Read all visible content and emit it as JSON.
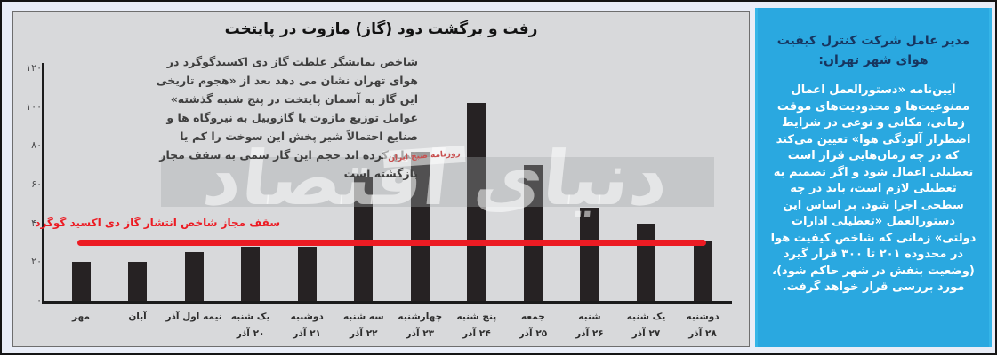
{
  "page": {
    "background": "#e9edf7",
    "panel_background": "#d8d9db"
  },
  "watermark": {
    "main": "دنیای اقتصاد",
    "tag": "روزنامه صبح ایران"
  },
  "chart_data": {
    "type": "bar",
    "title": "رفت و برگشت دود (گاز) مازوت در پایتخت",
    "annotation": "شاخص نمایشگر غلظت گاز دی اکسیدگوگرد در هوای تهران نشان می دهد بعد از «هجوم تاریخی این گاز به آسمان پایتخت در پنج شنبه گذشته» عوامل توزیع مازوت یا گازوییل به نیروگاه ها و صنایع احتمالاً شیر پخش این سوخت را کم یا قطع کرده اند حجم این گاز سمی به سقف مجاز بازگشته است",
    "categories": [
      {
        "line1": "مهر",
        "line2": ""
      },
      {
        "line1": "آبان",
        "line2": ""
      },
      {
        "line1": "نیمه اول آذر",
        "line2": ""
      },
      {
        "line1": "یک شنبه",
        "line2": "۲۰ آذر"
      },
      {
        "line1": "دوشنبه",
        "line2": "۲۱ آذر"
      },
      {
        "line1": "سه شنبه",
        "line2": "۲۲ آذر"
      },
      {
        "line1": "چهارشنبه",
        "line2": "۲۳ آذر"
      },
      {
        "line1": "پنج شنبه",
        "line2": "۲۴ آذر"
      },
      {
        "line1": "جمعه",
        "line2": "۲۵ آذر"
      },
      {
        "line1": "شنبه",
        "line2": "۲۶ آذر"
      },
      {
        "line1": "یک شنبه",
        "line2": "۲۷ آذر"
      },
      {
        "line1": "دوشنبه",
        "line2": "۲۸ آذر"
      }
    ],
    "values": [
      20,
      20,
      25,
      28,
      28,
      64,
      77,
      102,
      70,
      48,
      40,
      31
    ],
    "ylim": [
      0,
      120
    ],
    "ytick_values": [
      0,
      20,
      40,
      60,
      80,
      100,
      120
    ],
    "ytick_labels": [
      "۰",
      "۲۰",
      "۴۰",
      "۶۰",
      "۸۰",
      "۱۰۰",
      "۱۲۰"
    ],
    "grid": false,
    "legend": null,
    "bar_color": "#262223",
    "reference_line": {
      "value": 30,
      "label": "سقف مجاز شاخص انتشار گاز دی اکسید گوگرد",
      "color": "#ec1b23"
    }
  },
  "sidebar": {
    "heading": "مدیر عامل شرکت کنترل کیفیت هوای شهر تهران:",
    "body": "آیین‌نامه «دستورالعمل اعمال ممنوعیت‌ها و محدودیت‌های موقت زمانی، مکانی و نوعی در شرایط اضطرار آلودگی هوا» تعیین می‌کند که در چه زمان‌هایی قرار است تعطیلی اعمال شود و اگر تصمیم به تعطیلی لازم است، باید در چه سطحی اجرا شود. بر اساس این دستورالعمل «تعطیلی ادارات دولتی» زمانی که شاخص کیفیت هوا در محدوده ۲۰۱ تا ۳۰۰ قرار گیرد (وضعیت بنفش در شهر حاکم شود)، مورد بررسی قرار خواهد گرفت.",
    "background": "#2aa8e0",
    "heading_color": "#17355f",
    "body_color": "#ffffff"
  }
}
